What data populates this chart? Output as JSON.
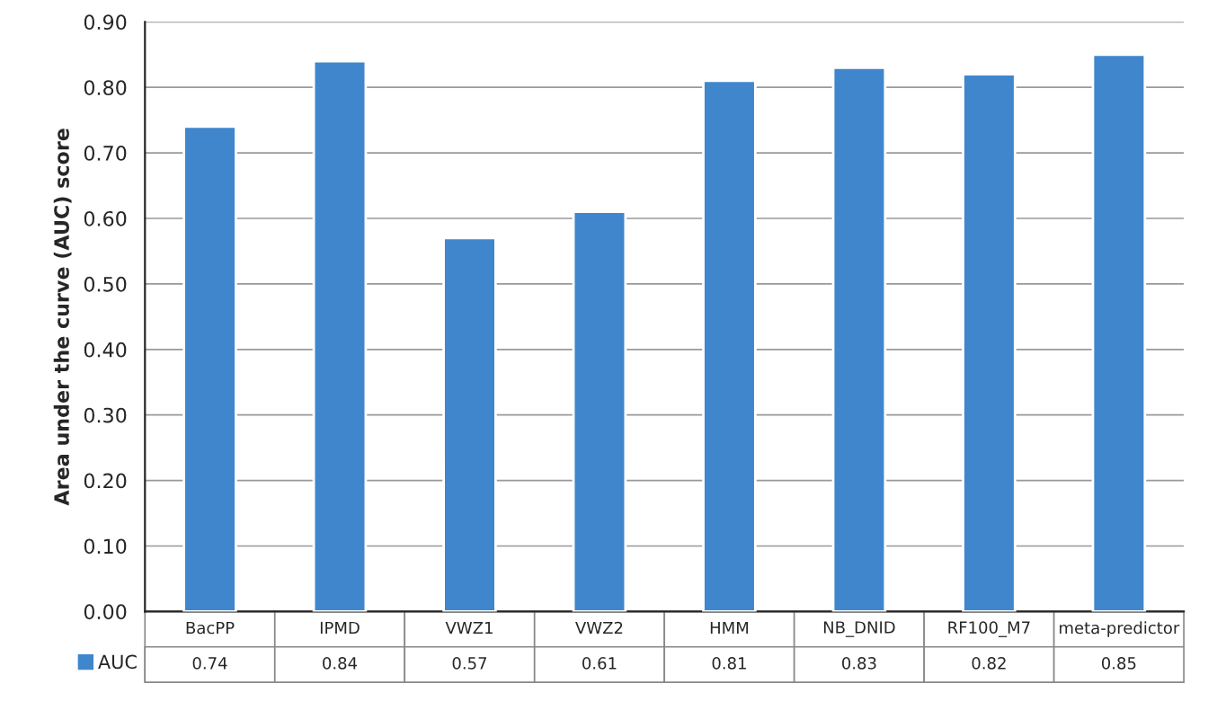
{
  "chart_data": {
    "type": "bar",
    "ylabel": "Area under the curve (AUC) score",
    "categories": [
      "BacPP",
      "IPMD",
      "VWZ1",
      "VWZ2",
      "HMM",
      "NB_DNID",
      "RF100_M7",
      "meta-predictor"
    ],
    "series": [
      {
        "name": "AUC",
        "color": "#3f86cc",
        "values": [
          0.74,
          0.84,
          0.57,
          0.61,
          0.81,
          0.83,
          0.82,
          0.85
        ]
      }
    ],
    "ylim": [
      0,
      0.9
    ],
    "yticks": [
      {
        "value": 0,
        "label": "0.00"
      },
      {
        "value": 0.1,
        "label": "0.10"
      },
      {
        "value": 0.2,
        "label": "0.20"
      },
      {
        "value": 0.3,
        "label": "0.30"
      },
      {
        "value": 0.4,
        "label": "0.40"
      },
      {
        "value": 0.5,
        "label": "0.50"
      },
      {
        "value": 0.6,
        "label": "0.60"
      },
      {
        "value": 0.7,
        "label": "0.70"
      },
      {
        "value": 0.8,
        "label": "0.80"
      },
      {
        "value": 0.9,
        "label": "0.90"
      }
    ],
    "grid": "y",
    "data_labels": true,
    "legend": "bottom left"
  }
}
